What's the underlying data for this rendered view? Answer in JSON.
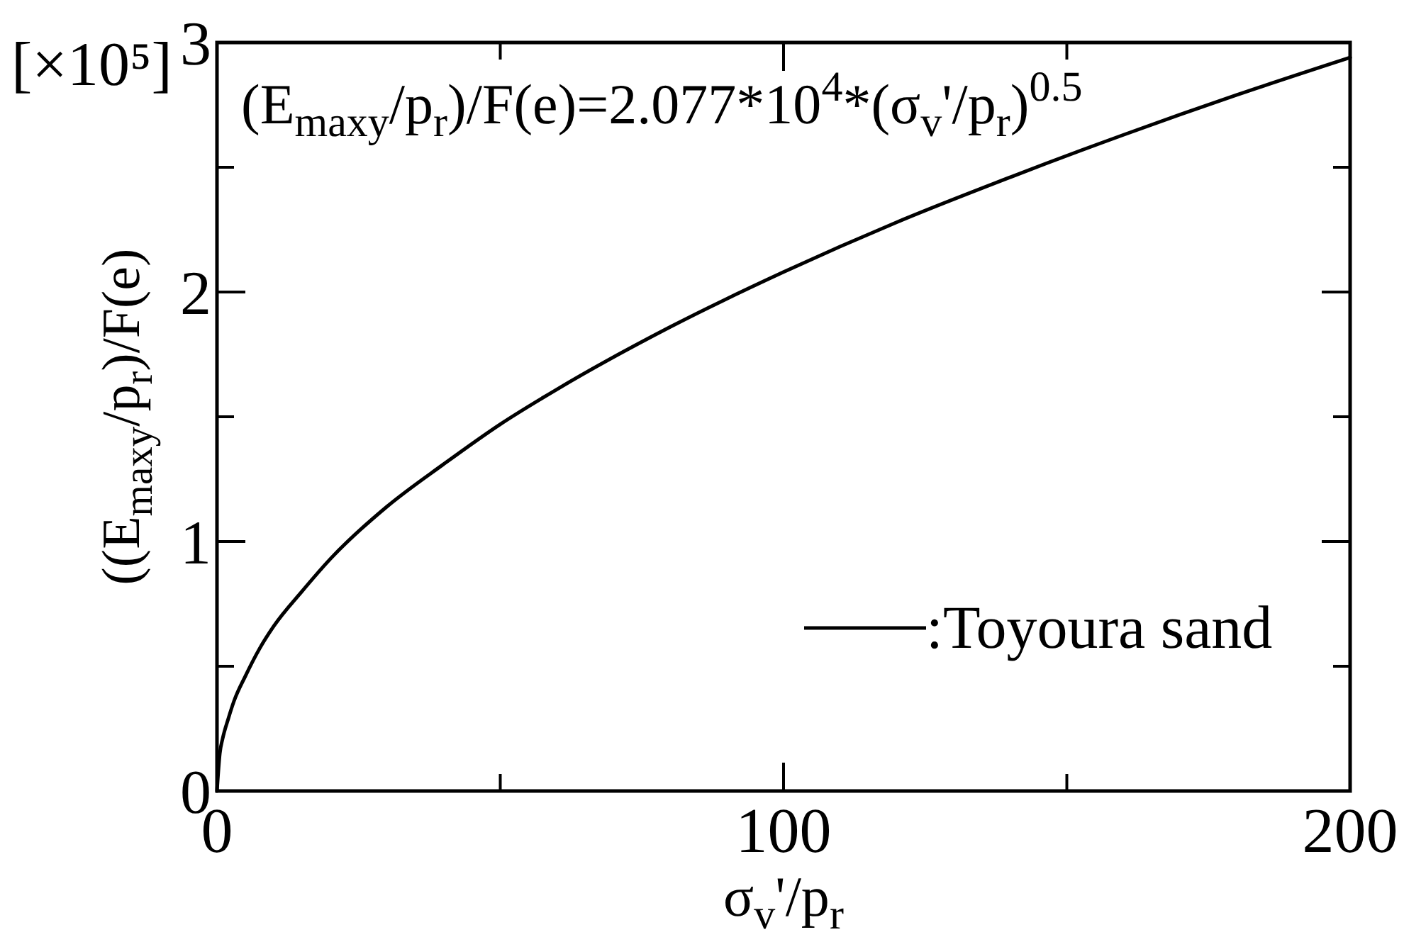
{
  "chart_data": {
    "type": "line",
    "xlabel": "σ$_{v}$'/p$_{r}$",
    "ylabel": "((E$_{maxy}$/p$_{r}$)/F(e)",
    "annotations": [
      "[×10⁵]",
      "(E$_{maxy}$/p$_{r}$)/F(e)=2.077*10$^{4}$*(σ$_{v}$'/p$_{r}$)$^{0.5}$"
    ],
    "x": [
      0,
      0.5,
      1,
      2,
      3,
      5,
      7.5,
      10,
      15,
      20,
      30,
      40,
      50,
      60,
      80,
      100,
      120,
      140,
      160,
      180,
      200
    ],
    "series": [
      {
        "name": ":Toyoura sand",
        "color": "#000000",
        "values": [
          0,
          0.15,
          0.21,
          0.29,
          0.36,
          0.46,
          0.57,
          0.66,
          0.8,
          0.93,
          1.14,
          1.31,
          1.47,
          1.61,
          1.86,
          2.08,
          2.28,
          2.46,
          2.63,
          2.79,
          2.94
        ]
      }
    ],
    "xlim": [
      0,
      200
    ],
    "xticks": [
      0,
      {
        "value": 50,
        "label": null
      },
      100,
      {
        "value": 150,
        "label": null
      },
      200
    ],
    "ylim": [
      0,
      3
    ],
    "yticks": [
      0,
      {
        "value": 0.5,
        "label": null
      },
      1,
      {
        "value": 1.5,
        "label": null
      },
      2,
      {
        "value": 2.5,
        "label": null
      },
      3
    ],
    "legend": "bottom right"
  }
}
